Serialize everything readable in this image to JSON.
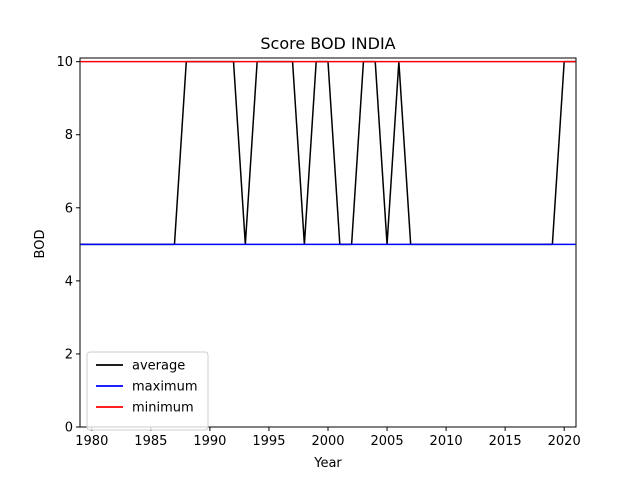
{
  "chart_data": {
    "type": "line",
    "title": "Score BOD INDIA",
    "xlabel": "Year",
    "ylabel": "BOD",
    "xlim": [
      1979,
      2021
    ],
    "ylim": [
      0,
      10.1
    ],
    "xticks": [
      1980,
      1985,
      1990,
      1995,
      2000,
      2005,
      2010,
      2015,
      2020
    ],
    "yticks": [
      0,
      2,
      4,
      6,
      8,
      10
    ],
    "grid": false,
    "legend": "lower-left",
    "series": [
      {
        "name": "average",
        "color": "#000000",
        "x": [
          1979,
          1987,
          1988,
          1992,
          1993,
          1994,
          1997,
          1998,
          1999,
          2000,
          2001,
          2002,
          2003,
          2004,
          2005,
          2006,
          2007,
          2019,
          2020,
          2021
        ],
        "y": [
          5,
          5,
          10,
          10,
          5,
          10,
          10,
          5,
          10,
          10,
          5,
          5,
          10,
          10,
          5,
          10,
          5,
          5,
          10,
          10
        ]
      },
      {
        "name": "maximum",
        "color": "#0000ff",
        "x": [
          1979,
          2021
        ],
        "y": [
          5,
          5
        ]
      },
      {
        "name": "minimum",
        "color": "#ff0000",
        "x": [
          1979,
          2021
        ],
        "y": [
          10,
          10
        ]
      }
    ]
  }
}
